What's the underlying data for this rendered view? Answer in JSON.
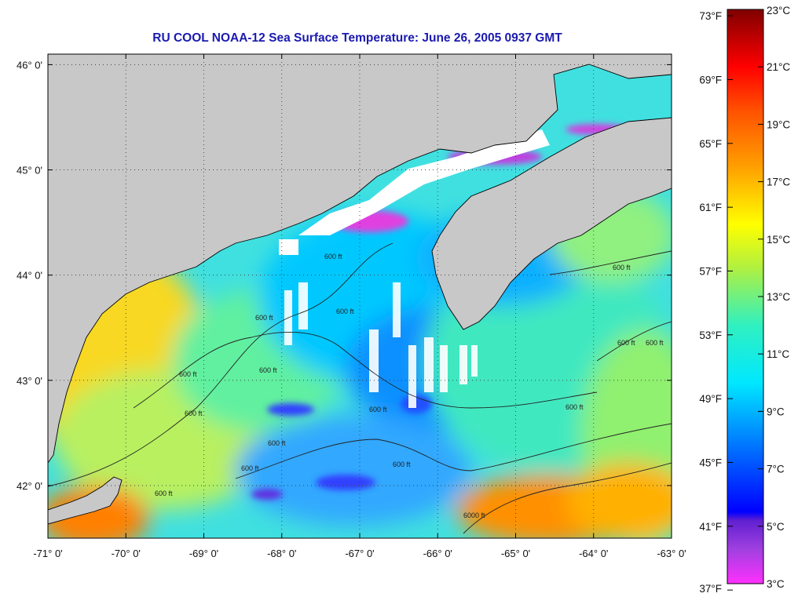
{
  "map": {
    "title": "RU COOL  NOAA-12  Sea Surface Temperature:  June 26, 2005 0937 GMT",
    "lon_range": [
      -71,
      -63
    ],
    "lat_range": [
      41.5,
      46.1
    ],
    "lon_ticks": [
      {
        "value": -71,
        "label": "-71° 0'"
      },
      {
        "value": -70,
        "label": "-70° 0'"
      },
      {
        "value": -69,
        "label": "-69° 0'"
      },
      {
        "value": -68,
        "label": "-68° 0'"
      },
      {
        "value": -67,
        "label": "-67° 0'"
      },
      {
        "value": -66,
        "label": "-66° 0'"
      },
      {
        "value": -65,
        "label": "-65° 0'"
      },
      {
        "value": -64,
        "label": "-64° 0'"
      },
      {
        "value": -63,
        "label": "-63° 0'"
      }
    ],
    "lat_ticks": [
      {
        "value": 46,
        "label": "46° 0'"
      },
      {
        "value": 45,
        "label": "45° 0'"
      },
      {
        "value": 44,
        "label": "44° 0'"
      },
      {
        "value": 43,
        "label": "43° 0'"
      },
      {
        "value": 42,
        "label": "42° 0'"
      }
    ],
    "grid": "dotted",
    "land_color": "#c8c8c8",
    "cloud_color": "#ffffff",
    "contour_label": "600 ft",
    "contour_label_deep": "6000 ft",
    "colors": {
      "cold": "#2040ff",
      "cool": "#00d8ff",
      "mild": "#60f0a0",
      "warm": "#f0f000",
      "hot": "#ff6000"
    }
  },
  "colorbar": {
    "fahrenheit_labels": [
      {
        "value": 73,
        "label": "73°F"
      },
      {
        "value": 69,
        "label": "69°F"
      },
      {
        "value": 65,
        "label": "65°F"
      },
      {
        "value": 61,
        "label": "61°F"
      },
      {
        "value": 57,
        "label": "57°F"
      },
      {
        "value": 53,
        "label": "53°F"
      },
      {
        "value": 49,
        "label": "49°F"
      },
      {
        "value": 45,
        "label": "45°F"
      },
      {
        "value": 41,
        "label": "41°F"
      },
      {
        "value": 37,
        "label": "37°F"
      }
    ],
    "celsius_labels": [
      {
        "value": 23,
        "label": "23°C"
      },
      {
        "value": 21,
        "label": "21°C"
      },
      {
        "value": 19,
        "label": "19°C"
      },
      {
        "value": 17,
        "label": "17°C"
      },
      {
        "value": 15,
        "label": "15°C"
      },
      {
        "value": 13,
        "label": "13°C"
      },
      {
        "value": 11,
        "label": "11°C"
      },
      {
        "value": 9,
        "label": "9°C"
      },
      {
        "value": 7,
        "label": "7°C"
      },
      {
        "value": 5,
        "label": "5°C"
      },
      {
        "value": 3,
        "label": "3°C"
      }
    ],
    "range_c": [
      3,
      23
    ],
    "stops": [
      {
        "c": 3,
        "color": "#ff30ff"
      },
      {
        "c": 4.2,
        "color": "#a040e0"
      },
      {
        "c": 5.2,
        "color": "#6020d0"
      },
      {
        "c": 5.5,
        "color": "#0000ff"
      },
      {
        "c": 8,
        "color": "#0080ff"
      },
      {
        "c": 10,
        "color": "#00e8ff"
      },
      {
        "c": 12,
        "color": "#30f0c0"
      },
      {
        "c": 14,
        "color": "#b0f040"
      },
      {
        "c": 15.5,
        "color": "#ffff00"
      },
      {
        "c": 17.5,
        "color": "#ffa000"
      },
      {
        "c": 19.5,
        "color": "#ff5000"
      },
      {
        "c": 21,
        "color": "#ff0000"
      },
      {
        "c": 23,
        "color": "#800000"
      }
    ]
  }
}
